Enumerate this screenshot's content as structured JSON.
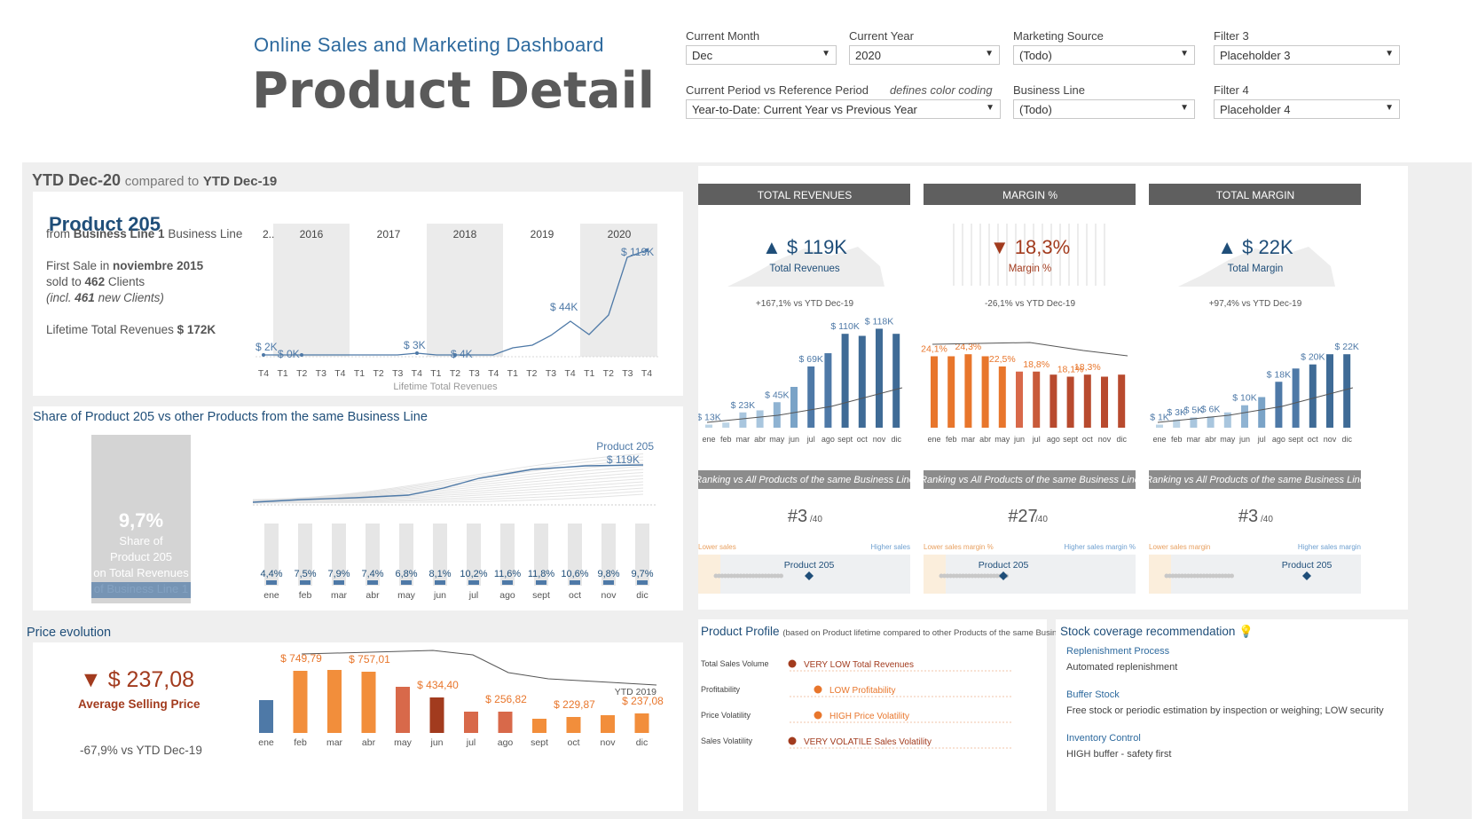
{
  "header": {
    "subtitle": "Online Sales and Marketing Dashboard",
    "title": "Product Detail"
  },
  "filters": {
    "current_month": {
      "label": "Current Month",
      "value": "Dec"
    },
    "current_year": {
      "label": "Current Year",
      "value": "2020"
    },
    "marketing_source": {
      "label": "Marketing Source",
      "value": "(Todo)"
    },
    "filter3": {
      "label": "Filter 3",
      "value": "Placeholder 3"
    },
    "period": {
      "label": "Current Period vs Reference Period",
      "note": "defines color coding",
      "value": "Year-to-Date: Current Year vs Previous Year"
    },
    "business_line": {
      "label": "Business Line",
      "value": "(Todo)"
    },
    "filter4": {
      "label": "Filter 4",
      "value": "Placeholder 4"
    }
  },
  "period_banner": {
    "current": "YTD Dec-20",
    "compared": "compared to",
    "reference": "YTD Dec-19"
  },
  "product": {
    "name": "Product 205",
    "from_prefix": "from",
    "business_line": "Business Line 1",
    "business_line_suffix": "Business Line",
    "first_sale_prefix": "First Sale in",
    "first_sale": "noviembre 2015",
    "sold_prefix": "sold to",
    "clients": "462",
    "clients_suffix": "Clients",
    "new_clients_prefix": "(incl.",
    "new_clients": "461",
    "new_clients_suffix": "new Clients)",
    "lifetime_label": "Lifetime Total Revenues",
    "lifetime_value": "$ 172K"
  },
  "lifetime_chart": {
    "years": [
      "2..",
      "2016",
      "2017",
      "2018",
      "2019",
      "2020"
    ],
    "quarters": [
      "T4",
      "T1",
      "T2",
      "T3",
      "T4",
      "T1",
      "T2",
      "T3",
      "T4",
      "T1",
      "T2",
      "T3",
      "T4",
      "T1",
      "T2",
      "T3",
      "T4",
      "T1",
      "T2",
      "T3",
      "T4"
    ],
    "labels": [
      "$ 2K",
      "$ 0K",
      "$ 3K",
      "$ 4K",
      "$ 44K",
      "$ 119K"
    ],
    "axis_label": "Lifetime Total Revenues"
  },
  "share": {
    "title": "Share of Product 205 vs other Products from the same Business Line",
    "big_value": "9,7%",
    "big_lines": [
      "Share of",
      "Product 205",
      "on Total Revenues",
      "of Business Line 1"
    ],
    "line_label": "Product 205",
    "line_value": "$ 119K",
    "months": [
      "ene",
      "feb",
      "mar",
      "abr",
      "may",
      "jun",
      "jul",
      "ago",
      "sept",
      "oct",
      "nov",
      "dic"
    ],
    "values": [
      "4,4%",
      "7,5%",
      "7,9%",
      "7,4%",
      "6,8%",
      "8,1%",
      "10,2%",
      "11,6%",
      "11,8%",
      "10,6%",
      "9,8%",
      "9,7%"
    ]
  },
  "price": {
    "title": "Price evolution",
    "value": "$ 237,08",
    "label": "Average Selling Price",
    "change": "-67,9%",
    "change_suffix": "vs YTD Dec-19",
    "ytd_tag": "YTD 2019",
    "months": [
      "ene",
      "feb",
      "mar",
      "abr",
      "may",
      "jun",
      "jul",
      "ago",
      "sept",
      "oct",
      "nov",
      "dic"
    ],
    "labels": [
      "",
      "$ 749,79",
      "",
      "$ 757,01",
      "",
      "$ 434,40",
      "",
      "$ 256,82",
      "",
      "$ 229,87",
      "",
      "$ 237,08"
    ]
  },
  "kpis": [
    {
      "head": "TOTAL REVENUES",
      "value": "$ 119K",
      "label": "Total Revenues",
      "delta": "+167,1% vs YTD Dec-19",
      "dir": "up",
      "bar_labels": [
        "$ 13K",
        "",
        "$ 23K",
        "",
        "$ 45K",
        "",
        "$ 69K",
        "",
        "$ 110K",
        "",
        "$ 118K",
        ""
      ]
    },
    {
      "head": "MARGIN %",
      "value": "18,3%",
      "label": "Margin %",
      "delta": "-26,1% vs YTD Dec-19",
      "dir": "down",
      "bar_labels": [
        "24,1%",
        "",
        "24,3%",
        "",
        "22,5%",
        "",
        "18,8%",
        "",
        "18,1%",
        "18,3%",
        "",
        ""
      ]
    },
    {
      "head": "TOTAL MARGIN",
      "value": "$ 22K",
      "label": "Total Margin",
      "delta": "+97,4% vs YTD Dec-19",
      "dir": "up",
      "bar_labels": [
        "$ 1K",
        "$ 3K",
        "$ 5K",
        "$ 6K",
        "",
        "$ 10K",
        "",
        "$ 18K",
        "",
        "$ 20K",
        "",
        "$ 22K"
      ]
    }
  ],
  "kpi_months": [
    "ene",
    "feb",
    "mar",
    "abr",
    "may",
    "jun",
    "jul",
    "ago",
    "sept",
    "oct",
    "nov",
    "dic"
  ],
  "rankings": [
    {
      "head": "Ranking vs All Products of the same Business Line",
      "rank": "#3",
      "of": "/40",
      "low": "Lower sales",
      "high": "Higher sales",
      "marker": "Product 205"
    },
    {
      "head": "Ranking vs All Products of the same Business Line",
      "rank": "#27",
      "of": "/40",
      "low": "Lower sales margin %",
      "high": "Higher sales margin %",
      "marker": "Product 205"
    },
    {
      "head": "Ranking vs All Products of the same Business Line",
      "rank": "#3",
      "of": "/40",
      "low": "Lower sales margin",
      "high": "Higher sales margin",
      "marker": "Product 205"
    }
  ],
  "profile": {
    "title": "Product Profile",
    "note": "(based on Product lifetime compared to other Products of the same Business Line)",
    "rows": [
      {
        "label": "Total Sales Volume",
        "value": "VERY LOW Total Revenues",
        "color": "#a23b1e"
      },
      {
        "label": "Profitability",
        "value": "LOW Profitability",
        "color": "#e8762c"
      },
      {
        "label": "Price Volatility",
        "value": "HIGH Price Volatility",
        "color": "#e8762c"
      },
      {
        "label": "Sales Volatility",
        "value": "VERY VOLATILE Sales Volatility",
        "color": "#a23b1e"
      }
    ]
  },
  "stock": {
    "title": "Stock coverage recommendation",
    "items": [
      {
        "head": "Replenishment Process",
        "text": "Automated replenishment"
      },
      {
        "head": "Buffer Stock",
        "text": "Free stock or periodic estimation by inspection or weighing; LOW security"
      },
      {
        "head": "Inventory Control",
        "text": "HIGH buffer - safety first"
      }
    ]
  },
  "colors": {
    "blue": "#4e79a7",
    "dark_blue": "#1f4e79",
    "orange": "#e8762c",
    "dark_orange": "#a23b1e"
  }
}
